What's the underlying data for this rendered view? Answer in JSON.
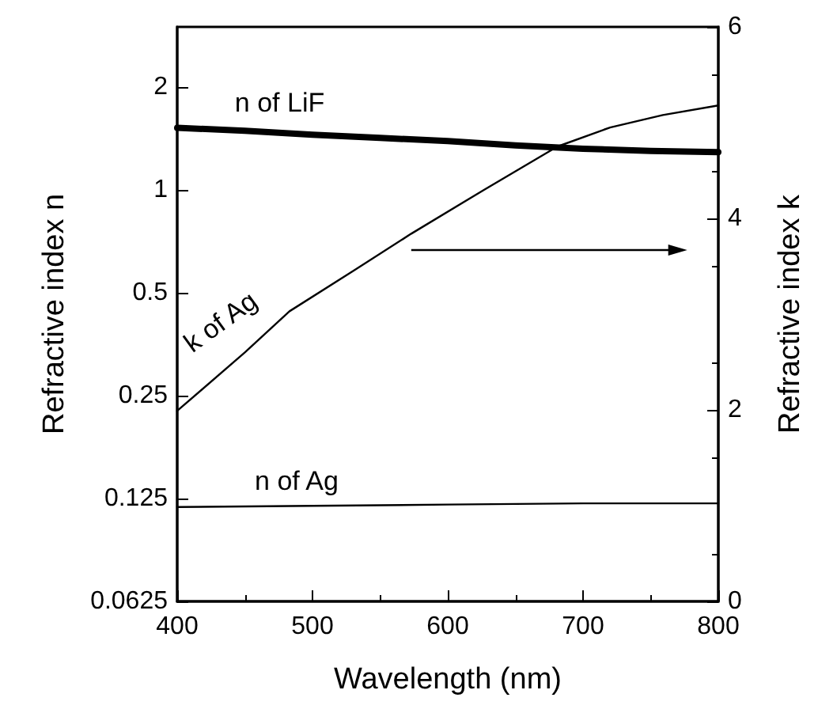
{
  "chart_data": {
    "type": "line",
    "xlabel": "Wavelength (nm)",
    "ylabel": "Refractive index n",
    "y2label": "Refractive index k",
    "xlim": [
      400,
      800
    ],
    "xticks": [
      400,
      500,
      600,
      700,
      800
    ],
    "log": "y",
    "ylim": [
      0.0625,
      3.0
    ],
    "yticks": [
      0.0625,
      0.125,
      0.25,
      0.5,
      1,
      2
    ],
    "y2lim": [
      0,
      6
    ],
    "y2ticks": [
      0,
      2,
      4,
      6
    ],
    "grid": false,
    "legend": false,
    "marker": "none",
    "series": [
      {
        "name": "n of LiF",
        "color": "#000000",
        "x": [
          400,
          450,
          500,
          550,
          600,
          650,
          700,
          750,
          800
        ],
        "values": [
          1.52,
          1.49,
          1.45,
          1.42,
          1.39,
          1.35,
          1.32,
          1.3,
          1.29
        ]
      },
      {
        "name": "k of Ag",
        "color": "#000000",
        "axis": "y2",
        "x": [
          400,
          450,
          483,
          530,
          573,
          627,
          681,
          720,
          759,
          800
        ],
        "values": [
          1.99,
          2.6,
          3.03,
          3.45,
          3.84,
          4.3,
          4.75,
          4.95,
          5.08,
          5.18
        ]
      },
      {
        "name": "n of Ag",
        "color": "#000000",
        "x": [
          400,
          500,
          600,
          700,
          800
        ],
        "values": [
          0.118,
          0.119,
          0.12,
          0.121,
          0.121
        ]
      }
    ]
  }
}
